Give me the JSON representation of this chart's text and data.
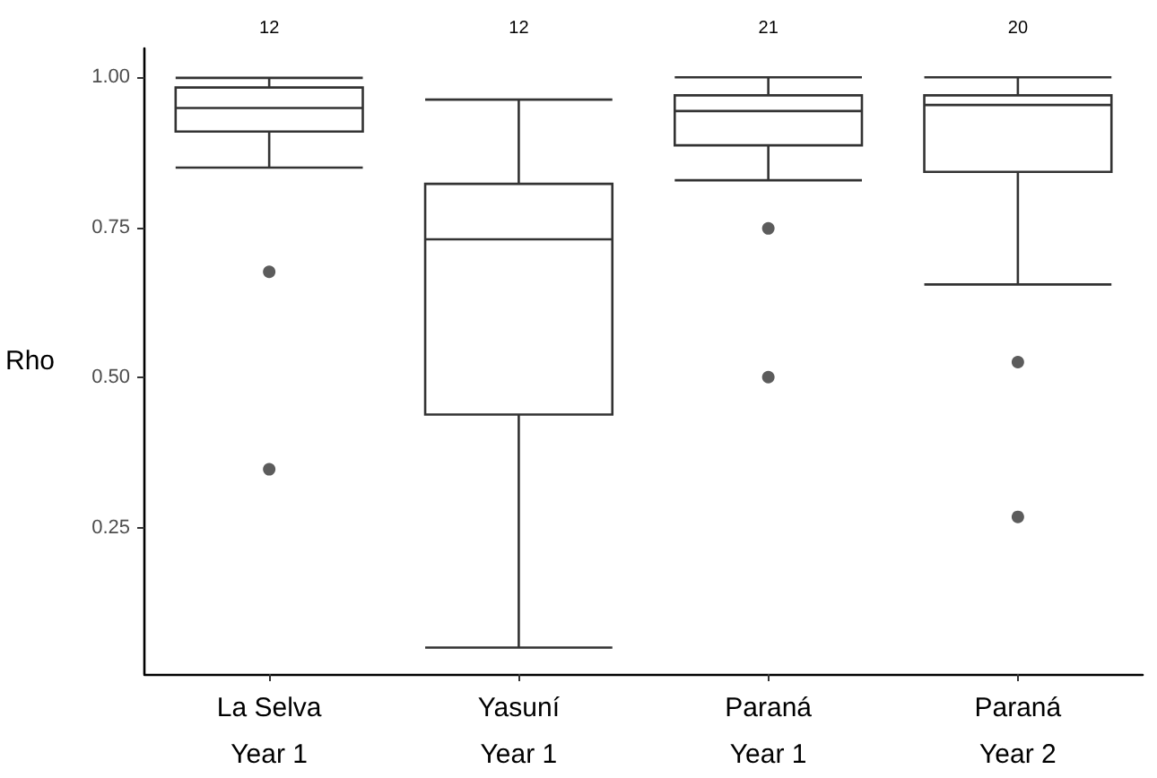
{
  "chart_data": {
    "type": "box",
    "ylabel": "Rho",
    "categories": [
      "La Selva\nYear 1",
      "Yasuní\nYear 1",
      "Paraná\nYear 1",
      "Paraná\nYear 2"
    ],
    "series": [
      {
        "color": "#333333",
        "boxes": [
          {
            "low": 0.849,
            "q1": 0.909,
            "median": 0.948,
            "q3": 0.982,
            "high": 0.998,
            "outliers": [
              0.676,
              0.348
            ]
          },
          {
            "low": 0.052,
            "q1": 0.439,
            "median": 0.73,
            "q3": 0.822,
            "high": 0.962
          },
          {
            "low": 0.828,
            "q1": 0.886,
            "median": 0.943,
            "q3": 0.969,
            "high": 0.999,
            "outliers": [
              0.748,
              0.501
            ]
          },
          {
            "low": 0.655,
            "q1": 0.842,
            "median": 0.953,
            "q3": 0.969,
            "high": 0.999,
            "outliers": [
              0.526,
              0.269
            ]
          }
        ]
      }
    ],
    "ylim": [
      0.008,
      1.047
    ],
    "yticks": [
      0.25,
      {
        "value": 0.5,
        "label": "0.50"
      },
      0.75,
      {
        "value": 1,
        "label": "1.00"
      }
    ],
    "grid": false,
    "annotations": [
      "12",
      "12",
      "21",
      "20"
    ]
  }
}
